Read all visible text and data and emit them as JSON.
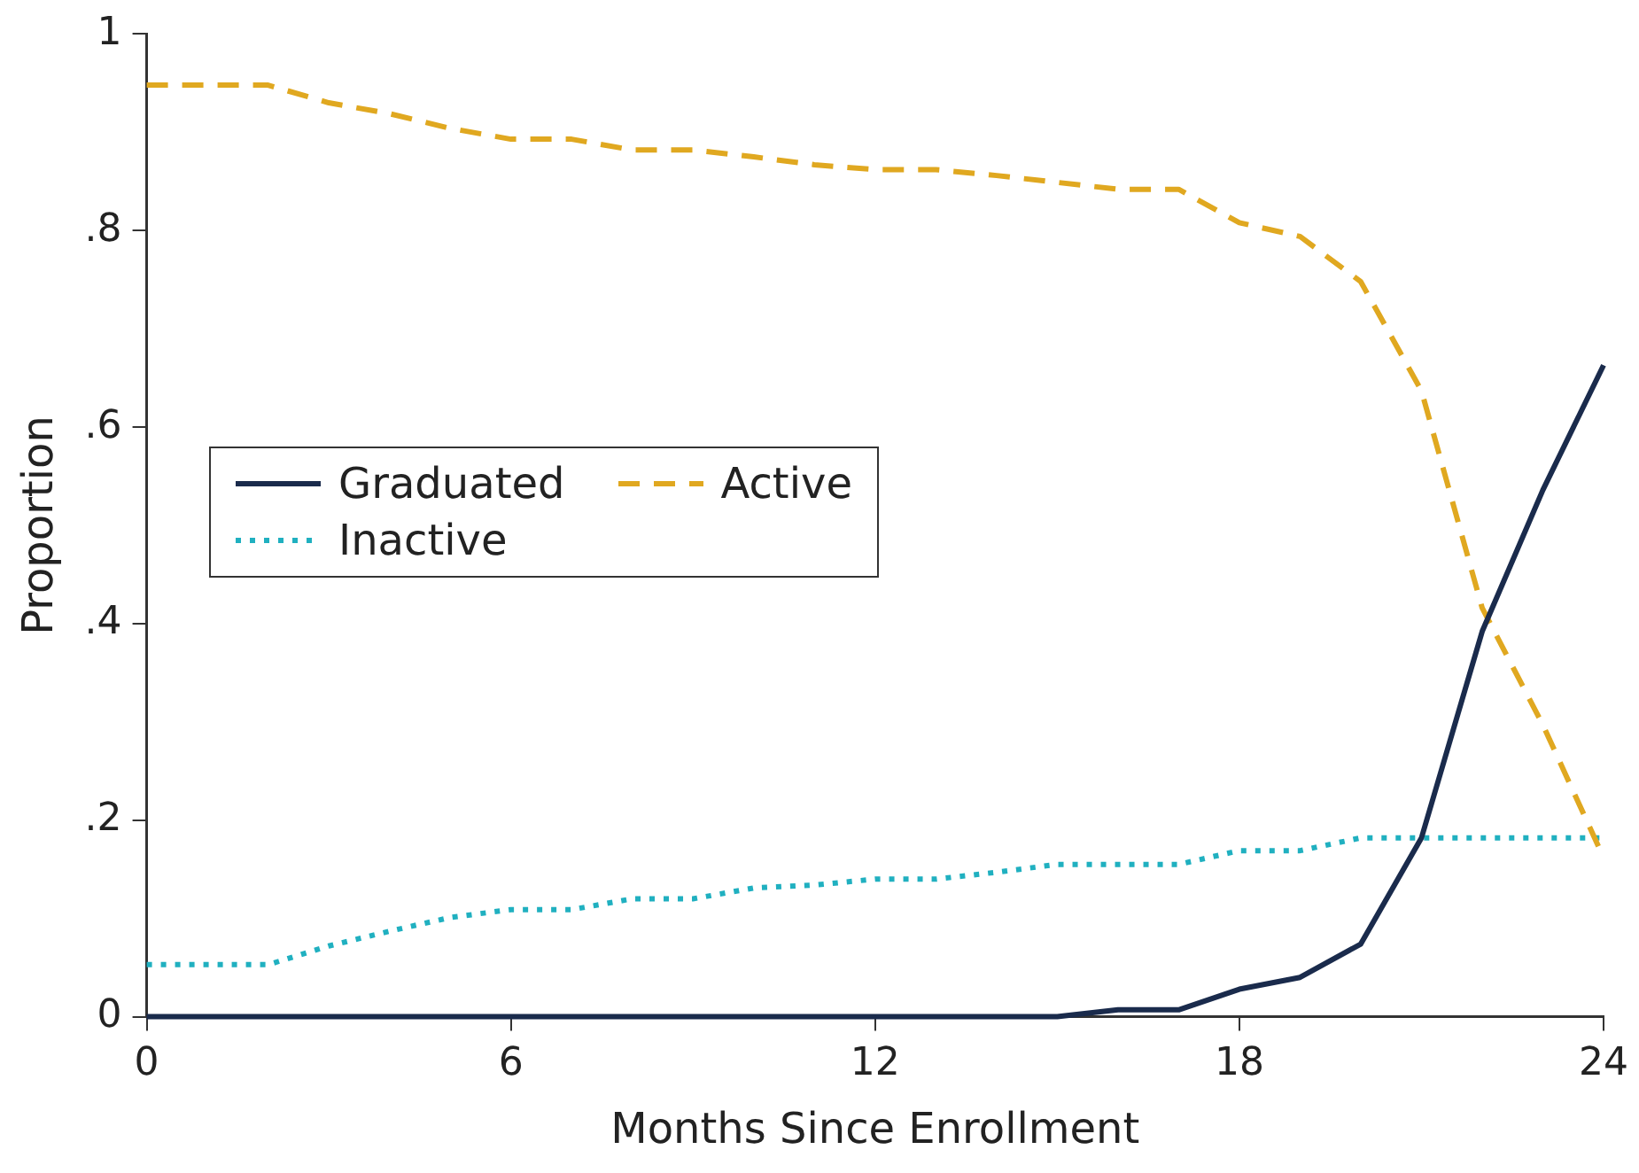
{
  "chart_data": {
    "type": "line",
    "xlabel": "Months Since Enrollment",
    "ylabel": "Proportion",
    "x": [
      0,
      1,
      2,
      3,
      4,
      5,
      6,
      7,
      8,
      9,
      10,
      11,
      12,
      13,
      14,
      15,
      16,
      17,
      18,
      19,
      20,
      21,
      22,
      23,
      24
    ],
    "xlim": [
      0,
      24
    ],
    "xticks": [
      0,
      6,
      12,
      18,
      24
    ],
    "ylim": [
      0,
      1
    ],
    "yticks": [
      {
        "value": 0,
        "label": "0"
      },
      {
        "value": 0.2,
        "label": ".2"
      },
      {
        "value": 0.4,
        "label": ".4"
      },
      {
        "value": 0.6,
        "label": ".6"
      },
      {
        "value": 0.8,
        "label": ".8"
      },
      {
        "value": 1,
        "label": "1"
      }
    ],
    "grid": false,
    "legend": "left",
    "marker": "none",
    "series": [
      {
        "name": "Graduated",
        "color": "#1a2b4c",
        "line_style": "solid",
        "values": [
          0,
          0,
          0,
          0,
          0,
          0,
          0,
          0,
          0,
          0,
          0,
          0,
          0,
          0,
          0,
          0,
          0.007,
          0.007,
          0.028,
          0.04,
          0.074,
          0.182,
          0.392,
          0.536,
          0.663
        ]
      },
      {
        "name": "Active",
        "color": "#e0a820",
        "line_style": "dashed",
        "values": [
          0.948,
          0.948,
          0.948,
          0.93,
          0.919,
          0.904,
          0.893,
          0.893,
          0.882,
          0.882,
          0.875,
          0.867,
          0.862,
          0.862,
          0.856,
          0.849,
          0.842,
          0.842,
          0.808,
          0.794,
          0.748,
          0.637,
          0.416,
          0.297,
          0.162
        ]
      },
      {
        "name": "Inactive",
        "color": "#20b0c0",
        "line_style": "dotted",
        "values": [
          0.053,
          0.053,
          0.053,
          0.072,
          0.087,
          0.101,
          0.109,
          0.109,
          0.12,
          0.12,
          0.131,
          0.134,
          0.14,
          0.14,
          0.147,
          0.155,
          0.155,
          0.155,
          0.169,
          0.169,
          0.182,
          0.182,
          0.182,
          0.182,
          0.182
        ]
      }
    ]
  }
}
